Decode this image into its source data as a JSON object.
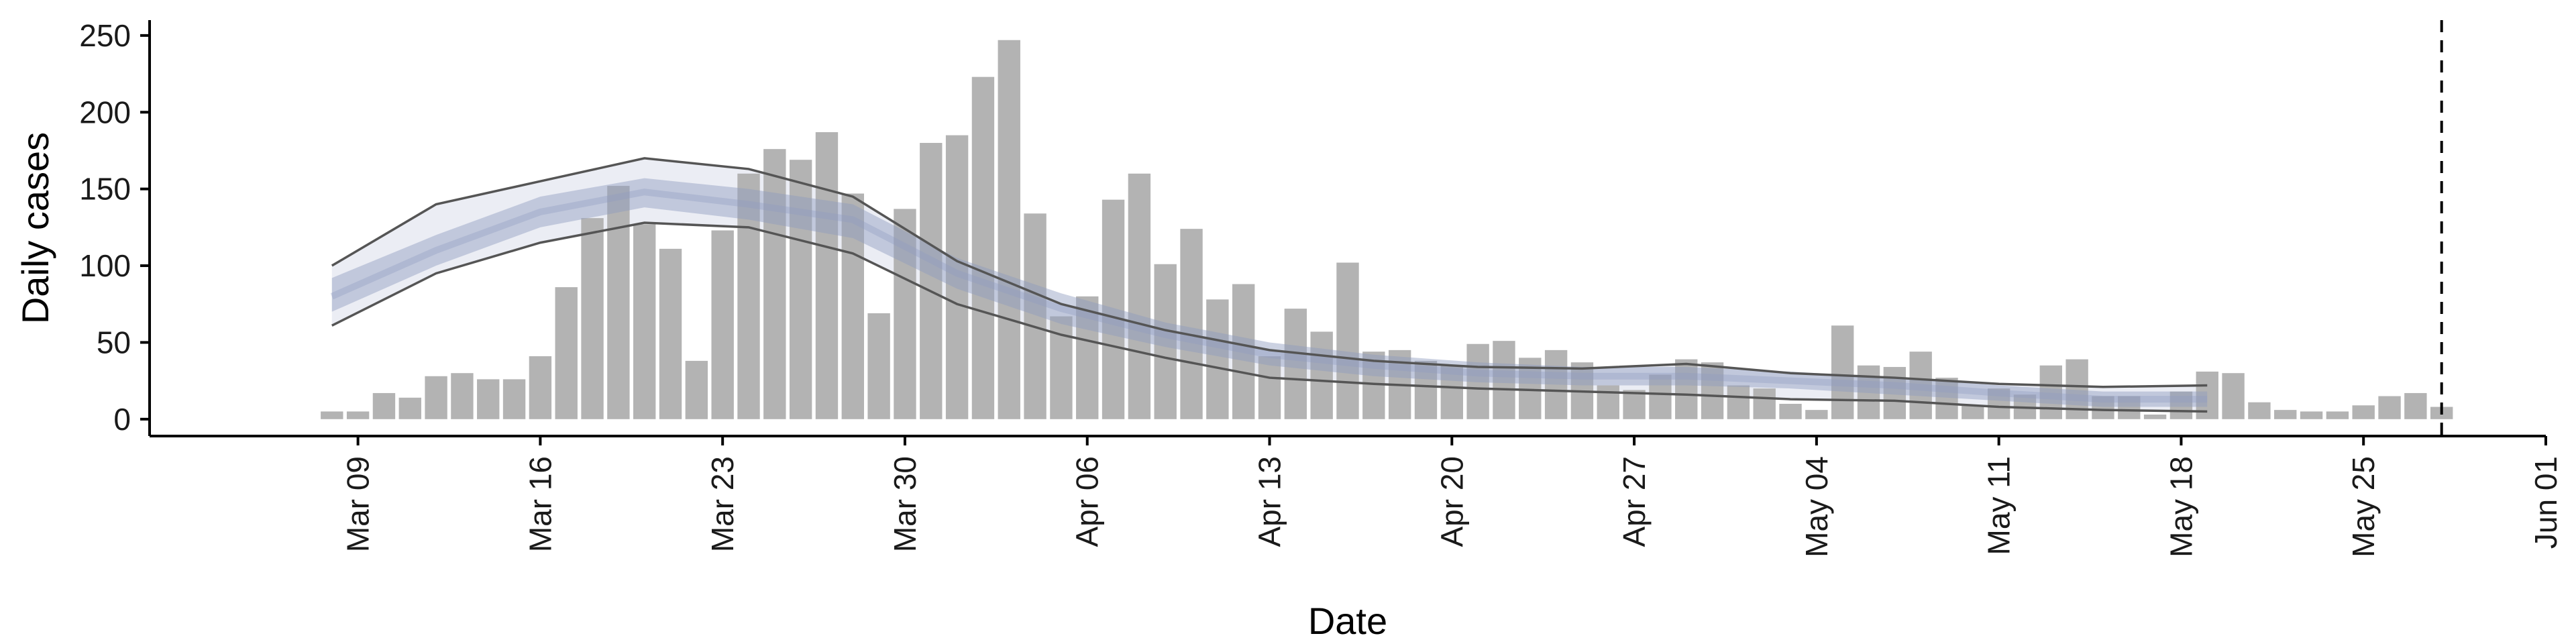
{
  "chart_data": {
    "type": "bar",
    "xlabel": "Date",
    "ylabel": "Daily cases",
    "ylim": [
      -11,
      260
    ],
    "xlim": [
      "2020-03-01",
      "2020-06-01"
    ],
    "grid": false,
    "x_ticks": [
      "Mar 09",
      "Mar 16",
      "Mar 23",
      "Mar 30",
      "Apr 06",
      "Apr 13",
      "Apr 20",
      "Apr 27",
      "May 04",
      "May 11",
      "May 18",
      "May 25",
      "Jun 01"
    ],
    "y_ticks": [
      "0",
      "50",
      "100",
      "150",
      "200",
      "250"
    ],
    "bars": {
      "name": "Daily cases",
      "start_date": "2020-03-08",
      "values": [
        5,
        5,
        17,
        14,
        28,
        30,
        26,
        26,
        41,
        86,
        131,
        152,
        127,
        111,
        38,
        123,
        160,
        176,
        169,
        187,
        147,
        69,
        137,
        180,
        185,
        223,
        247,
        134,
        67,
        80,
        143,
        160,
        101,
        124,
        78,
        88,
        41,
        72,
        57,
        102,
        44,
        45,
        38,
        35,
        49,
        51,
        40,
        45,
        37,
        22,
        19,
        29,
        39,
        37,
        22,
        20,
        10,
        6,
        61,
        35,
        34,
        44,
        27,
        9,
        20,
        16,
        35,
        39,
        15,
        15,
        3,
        18,
        31,
        30,
        11,
        6,
        5,
        5,
        9,
        15,
        17,
        8
      ]
    },
    "bands": {
      "dates": [
        "2020-03-08",
        "2020-03-12",
        "2020-03-16",
        "2020-03-20",
        "2020-03-24",
        "2020-03-28",
        "2020-04-01",
        "2020-04-05",
        "2020-04-09",
        "2020-04-13",
        "2020-04-17",
        "2020-04-21",
        "2020-04-25",
        "2020-04-29",
        "2020-05-03",
        "2020-05-07",
        "2020-05-11",
        "2020-05-15",
        "2020-05-19"
      ],
      "median": [
        80,
        110,
        135,
        148,
        140,
        130,
        95,
        72,
        55,
        42,
        35,
        30,
        28,
        28,
        25,
        22,
        17,
        13,
        13
      ],
      "inner_lower": [
        70,
        100,
        125,
        138,
        130,
        118,
        85,
        62,
        47,
        35,
        28,
        24,
        22,
        22,
        20,
        16,
        12,
        8,
        8
      ],
      "inner_upper": [
        92,
        120,
        145,
        157,
        150,
        140,
        105,
        82,
        63,
        50,
        42,
        37,
        34,
        34,
        31,
        27,
        22,
        18,
        18
      ],
      "outer_lower": [
        61,
        95,
        115,
        128,
        125,
        108,
        75,
        55,
        40,
        27,
        23,
        20,
        18,
        16,
        13,
        12,
        8,
        6,
        5
      ],
      "outer_upper": [
        100,
        140,
        155,
        170,
        163,
        145,
        103,
        75,
        58,
        45,
        38,
        34,
        33,
        36,
        30,
        27,
        23,
        21,
        22
      ],
      "inner_color": "#8e9bbf",
      "outer_color": "#c5cbe0",
      "edge_color": "#555555"
    },
    "bar_color": "#b3b3b3",
    "vline": {
      "date": "2020-05-28",
      "style": "dashed",
      "color": "#000000"
    }
  }
}
